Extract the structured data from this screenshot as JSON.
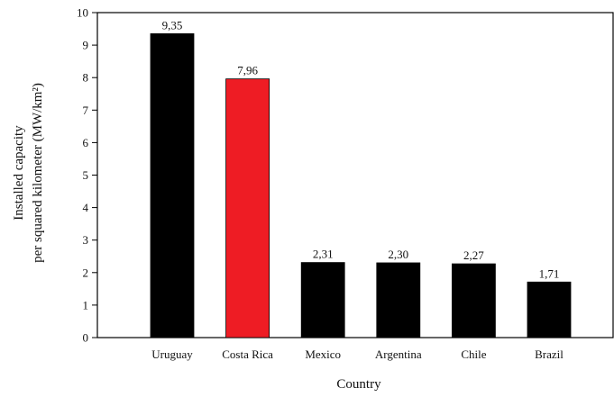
{
  "chart_data": {
    "type": "bar",
    "categories": [
      "Uruguay",
      "Costa Rica",
      "Mexico",
      "Argentina",
      "Chile",
      "Brazil"
    ],
    "values": [
      9.35,
      7.96,
      2.31,
      2.3,
      2.27,
      1.71
    ],
    "value_labels": [
      "9,35",
      "7,96",
      "2,31",
      "2,30",
      "2,27",
      "1,71"
    ],
    "bar_colors": [
      "#000000",
      "#ee1c24",
      "#000000",
      "#000000",
      "#000000",
      "#000000"
    ],
    "xlabel": "Country",
    "ylabel_lines": [
      "Installed capacity",
      "per squared kilometer (MW/km²)"
    ],
    "ylim": [
      0,
      10
    ],
    "yticks": [
      0,
      1,
      2,
      3,
      4,
      5,
      6,
      7,
      8,
      9,
      10
    ],
    "grid": false,
    "legend": "none"
  }
}
